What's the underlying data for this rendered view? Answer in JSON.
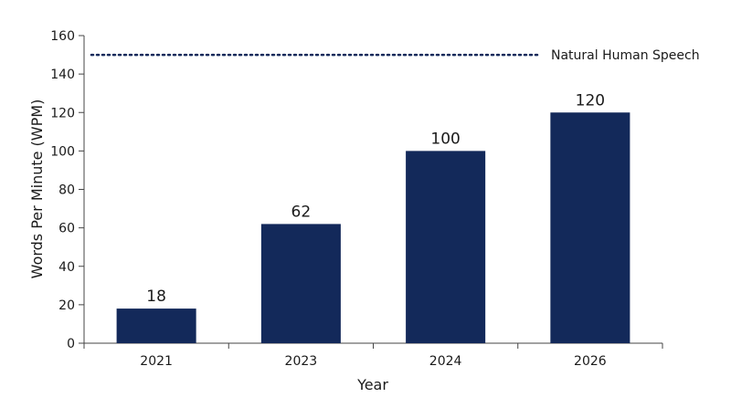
{
  "chart_data": {
    "type": "bar",
    "categories": [
      "2021",
      "2023",
      "2024",
      "2026"
    ],
    "values": [
      18,
      62,
      100,
      120
    ],
    "xlabel": "Year",
    "ylabel": "Words Per Minute (WPM)",
    "ylim": [
      0,
      160
    ],
    "yticks": [
      0,
      20,
      40,
      60,
      80,
      100,
      120,
      140,
      160
    ],
    "grid": false,
    "bar_color": "#13295a",
    "reference_line": {
      "value": 150,
      "label": "Natural Human Speech",
      "style": "dotted",
      "color": "#13295a"
    }
  }
}
